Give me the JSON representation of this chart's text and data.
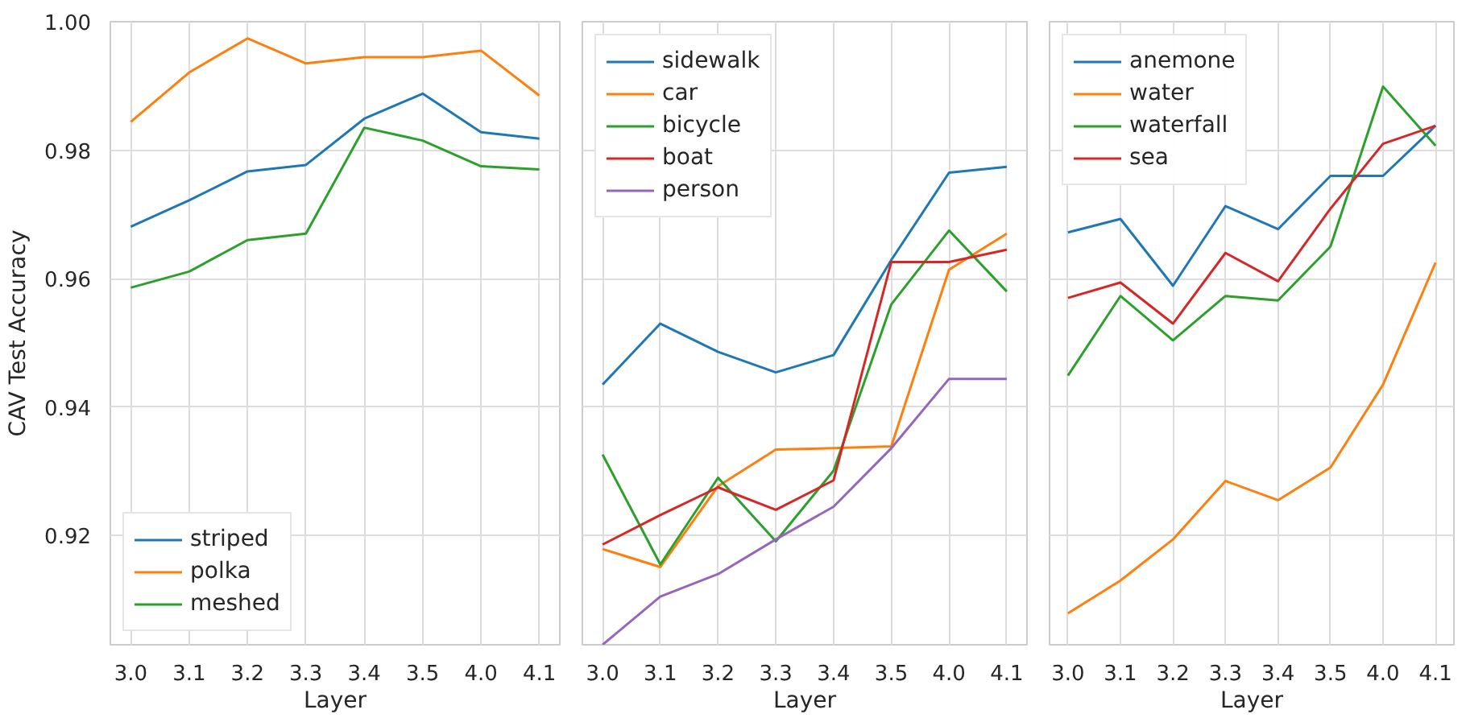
{
  "chart_data": [
    {
      "type": "line",
      "categories": [
        "3.0",
        "3.1",
        "3.2",
        "3.3",
        "3.4",
        "3.5",
        "4.0",
        "4.1"
      ],
      "xlabel": "Layer",
      "ylabel": "CAV Test Accuracy",
      "ylim": [
        0.903,
        1.0
      ],
      "yticks": [
        {
          "value": 0.92,
          "label": "0.92"
        },
        {
          "value": 0.94,
          "label": "0.94"
        },
        {
          "value": 0.96,
          "label": "0.96"
        },
        {
          "value": 0.98,
          "label": "0.98"
        },
        {
          "value": 1.0,
          "label": "1.00"
        }
      ],
      "grid": true,
      "legend": "bottom left",
      "series": [
        {
          "name": "striped",
          "color": "#1f77b4",
          "values": [
            0.9681,
            0.9722,
            0.9767,
            0.9777,
            0.9849,
            0.9888,
            0.9828,
            0.9818
          ]
        },
        {
          "name": "polka",
          "color": "#ff7f0e",
          "values": [
            0.9844,
            0.9921,
            0.9974,
            0.9935,
            0.9945,
            0.9945,
            0.9955,
            0.9885
          ]
        },
        {
          "name": "meshed",
          "color": "#2ca02c",
          "values": [
            0.9586,
            0.9611,
            0.966,
            0.967,
            0.9835,
            0.9815,
            0.9775,
            0.977
          ]
        }
      ]
    },
    {
      "type": "line",
      "categories": [
        "3.0",
        "3.1",
        "3.2",
        "3.3",
        "3.4",
        "3.5",
        "4.0",
        "4.1"
      ],
      "xlabel": "Layer",
      "ylim": [
        0.903,
        1.0
      ],
      "yticks": [
        0.92,
        0.94,
        0.96,
        0.98,
        1.0
      ],
      "tick_labels": "x",
      "grid": true,
      "legend": "top left",
      "series": [
        {
          "name": "sidewalk",
          "color": "#1f77b4",
          "values": [
            0.9435,
            0.953,
            0.9486,
            0.9454,
            0.9481,
            0.9629,
            0.9765,
            0.9774
          ]
        },
        {
          "name": "car",
          "color": "#ff7f0e",
          "values": [
            0.9179,
            0.9151,
            0.9277,
            0.9334,
            0.9336,
            0.9339,
            0.9614,
            0.967
          ]
        },
        {
          "name": "bicycle",
          "color": "#2ca02c",
          "values": [
            0.9326,
            0.9155,
            0.929,
            0.9191,
            0.9301,
            0.956,
            0.9675,
            0.958
          ]
        },
        {
          "name": "boat",
          "color": "#d62728",
          "values": [
            0.9186,
            0.9232,
            0.9275,
            0.924,
            0.9286,
            0.9626,
            0.9626,
            0.9645
          ]
        },
        {
          "name": "person",
          "color": "#9467bd",
          "values": [
            0.903,
            0.9105,
            0.914,
            0.9194,
            0.9245,
            0.9336,
            0.9444,
            0.9444
          ]
        }
      ]
    },
    {
      "type": "line",
      "categories": [
        "3.0",
        "3.1",
        "3.2",
        "3.3",
        "3.4",
        "3.5",
        "4.0",
        "4.1"
      ],
      "xlabel": "Layer",
      "ylim": [
        0.903,
        1.0
      ],
      "yticks": [
        0.92,
        0.94,
        0.96,
        0.98,
        1.0
      ],
      "tick_labels": "x",
      "grid": true,
      "legend": "top left",
      "series": [
        {
          "name": "anemone",
          "color": "#1f77b4",
          "values": [
            0.9672,
            0.9693,
            0.9589,
            0.9713,
            0.9677,
            0.976,
            0.976,
            0.9838
          ]
        },
        {
          "name": "water",
          "color": "#ff7f0e",
          "values": [
            0.9079,
            0.913,
            0.9194,
            0.9285,
            0.9255,
            0.9306,
            0.9435,
            0.9625
          ]
        },
        {
          "name": "waterfall",
          "color": "#2ca02c",
          "values": [
            0.9449,
            0.9573,
            0.9504,
            0.9573,
            0.9566,
            0.965,
            0.9899,
            0.9807
          ]
        },
        {
          "name": "sea",
          "color": "#d62728",
          "values": [
            0.957,
            0.9594,
            0.953,
            0.964,
            0.9596,
            0.9709,
            0.981,
            0.9838
          ]
        }
      ]
    }
  ]
}
